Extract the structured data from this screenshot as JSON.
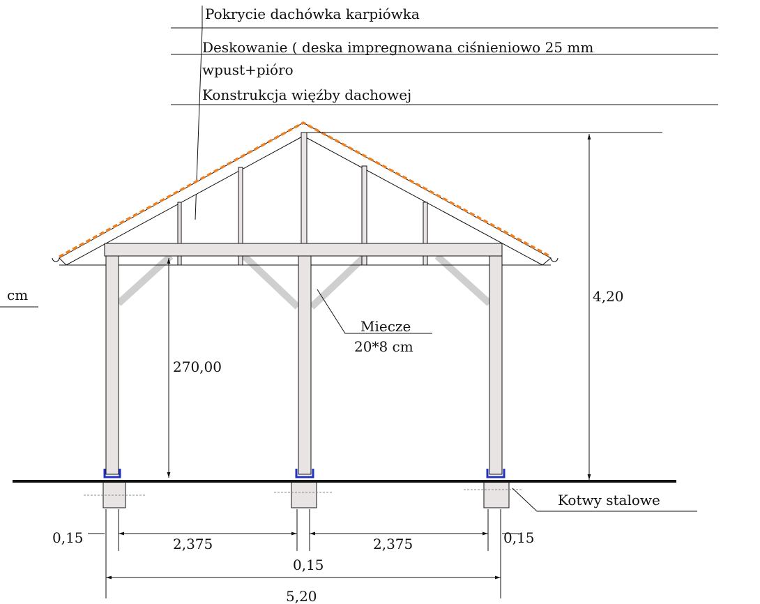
{
  "roof_layers": [
    "Pokrycie dachówka karpiówka",
    "Deskowanie ( deska impregnowana ciśnieniowo 25 mm",
    "wpust+pióro",
    "Konstrukcja więźby dachowej"
  ],
  "dimensions": {
    "post_height": "270,00",
    "total_height": "4,20",
    "post_width_left": "0,15",
    "span_left": "2,375",
    "post_width_center": "0,15",
    "span_right": "2,375",
    "post_width_right": "0,15",
    "total_width": "5,20"
  },
  "annotations": {
    "braces_title": "Miecze",
    "braces_size": "20*8 cm",
    "anchors": "Kotwy stalowe",
    "unit": "cm"
  }
}
